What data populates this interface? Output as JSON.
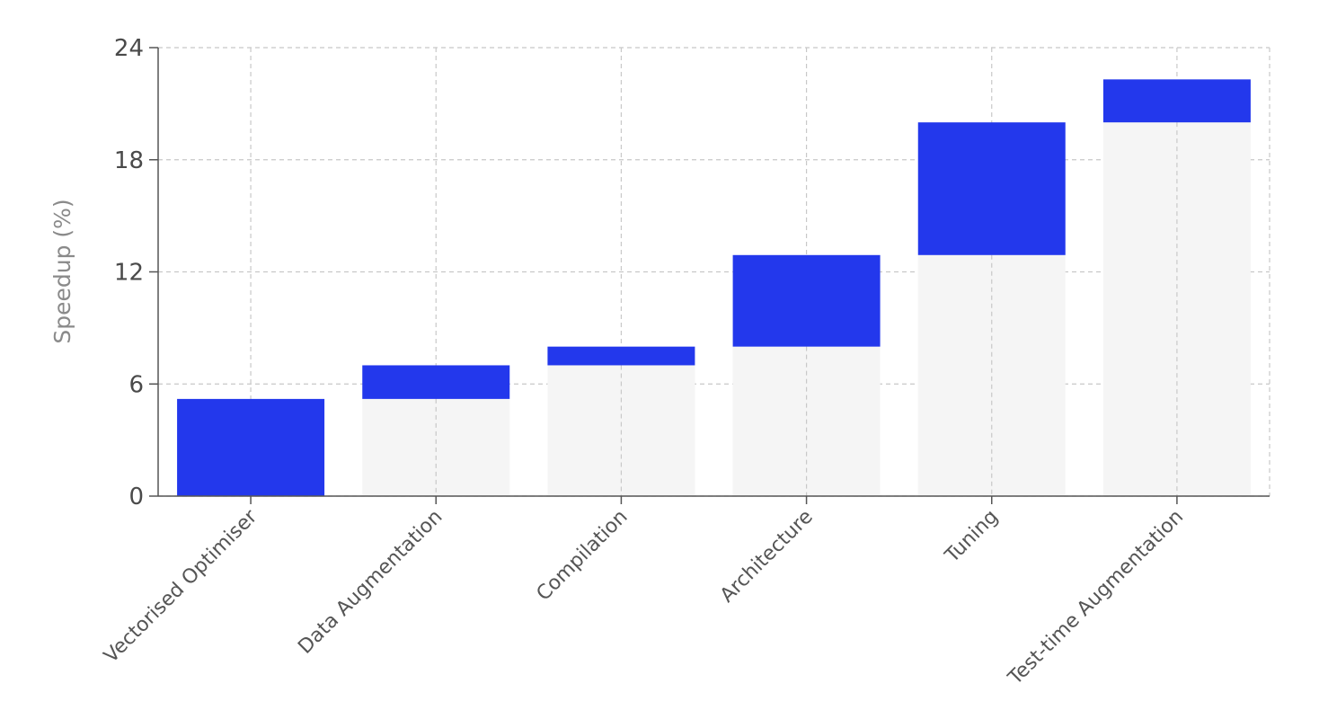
{
  "chart_data": {
    "type": "bar",
    "subtype": "waterfall",
    "title": "",
    "xlabel": "",
    "ylabel": "Speedup (%)",
    "ylim": [
      0,
      24
    ],
    "yticks": [
      0,
      6,
      12,
      18,
      24
    ],
    "grid": true,
    "categories": [
      "Vectorised Optimiser",
      "Data Augmentation",
      "Compilation",
      "Architecture",
      "Tuning",
      "Test-time Augmentation"
    ],
    "values": [
      5.2,
      1.8,
      1.0,
      4.9,
      7.1,
      2.3
    ],
    "cumulative_base": [
      0,
      5.2,
      7.0,
      8.0,
      12.9,
      20.0
    ],
    "colors": {
      "increment": "#2338ec",
      "base": "#f5f5f5",
      "axis": "#555555",
      "grid": "#c8c8c8"
    }
  }
}
